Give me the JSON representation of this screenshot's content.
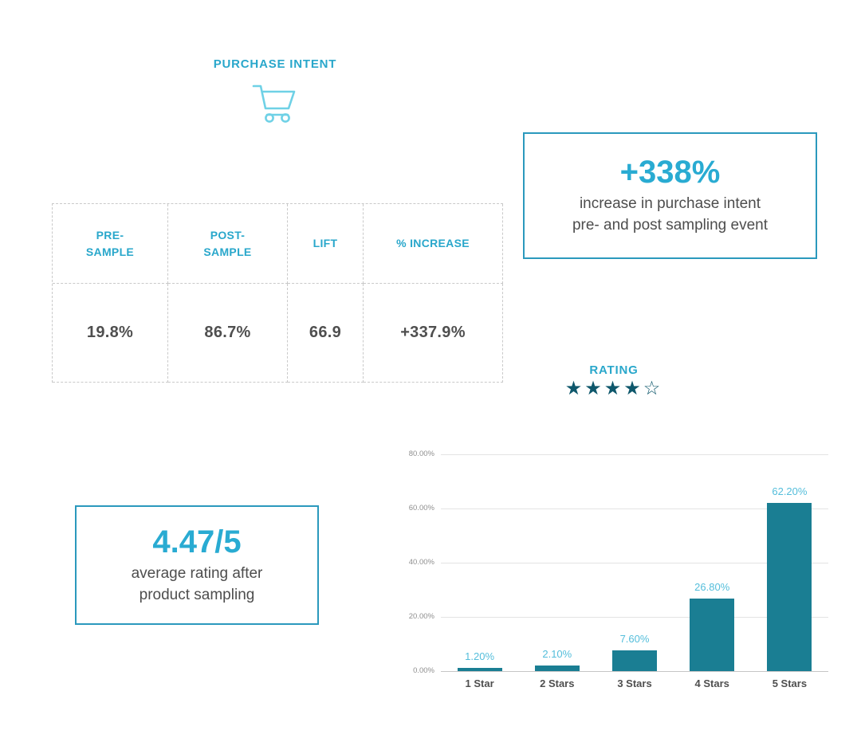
{
  "colors": {
    "accent": "#29abd2",
    "accent_light": "#6fd1e6",
    "bar": "#1a7e93",
    "box_border": "#2b99bd",
    "star": "#0f586c",
    "text_gray": "#4d4d4d"
  },
  "purchase_intent": {
    "title": "PURCHASE INTENT",
    "table": {
      "headers": [
        "PRE-\nSAMPLE",
        "POST-\nSAMPLE",
        "LIFT",
        "% INCREASE"
      ],
      "values": [
        "19.8%",
        "86.7%",
        "66.9",
        "+337.9%"
      ]
    },
    "callout": {
      "headline": "+338%",
      "description": "increase in purchase intent\npre- and post sampling event"
    }
  },
  "rating": {
    "title": "RATING",
    "stars_filled": 4,
    "stars_total": 5,
    "callout": {
      "headline": "4.47/5",
      "description": "average rating after\nproduct sampling"
    }
  },
  "chart_data": {
    "type": "bar",
    "title": "",
    "xlabel": "",
    "ylabel": "",
    "categories": [
      "1 Star",
      "2 Stars",
      "3 Stars",
      "4 Stars",
      "5 Stars"
    ],
    "values": [
      1.2,
      2.1,
      7.6,
      26.8,
      62.2
    ],
    "value_labels": [
      "1.20%",
      "2.10%",
      "7.60%",
      "26.80%",
      "62.20%"
    ],
    "y_ticks": [
      "80.00%",
      "60.00%",
      "40.00%",
      "20.00%",
      "0.00%"
    ],
    "ylim": [
      0,
      80
    ],
    "grid": true,
    "legend": false,
    "bar_color": "#1a7e93"
  }
}
